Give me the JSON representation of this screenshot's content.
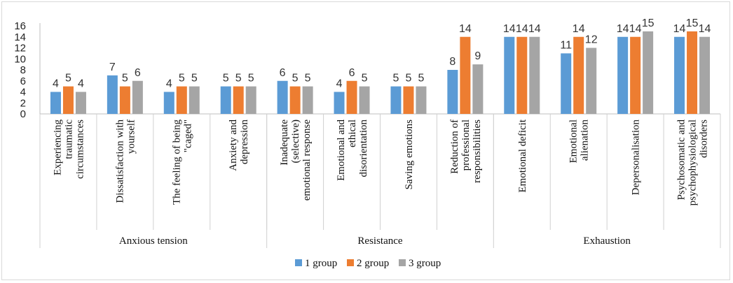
{
  "chart_data": {
    "type": "bar",
    "title": "",
    "xlabel": "",
    "ylabel": "",
    "ylim": [
      0,
      16
    ],
    "yticks": [
      0,
      2,
      4,
      6,
      8,
      10,
      12,
      14,
      16
    ],
    "grid": false,
    "legend_position": "bottom",
    "categories": [
      "Experiencing traumatic circumstances",
      "Dissatisfaction with yourself",
      "The feeling of being \"caged\"",
      "Anxiety and depression",
      "Inadequate (selective) emotional response",
      "Emotional and ethical disorientation",
      "Saving emotions",
      "Reduction of professional responsibilities",
      "Emotional deficit",
      "Emotional alienation",
      "Depersonalisation",
      "Psychosomatic and psychophysiological disorders"
    ],
    "category_lines": [
      [
        "Experiencing",
        "traumatic",
        "circumstances"
      ],
      [
        "Dissatisfaction with",
        "yourself"
      ],
      [
        "The feeling of being",
        "\"caged\""
      ],
      [
        "Anxiety and",
        "depression"
      ],
      [
        "Inadequate",
        "(selective)",
        "emotional response"
      ],
      [
        "Emotional and",
        "ethical",
        "disorientation"
      ],
      [
        "Saving emotions"
      ],
      [
        "Reduction of",
        "professional",
        "responsibilities"
      ],
      [
        "Emotional deficit"
      ],
      [
        "Emotional",
        "alienation"
      ],
      [
        "Depersonalisation"
      ],
      [
        "Psychosomatic and",
        "psychophysiological",
        "disorders"
      ]
    ],
    "groups": [
      {
        "name": "Anxious tension",
        "span": 4
      },
      {
        "name": "Resistance",
        "span": 4
      },
      {
        "name": "Exhaustion",
        "span": 4
      }
    ],
    "series": [
      {
        "name": "1 group",
        "color": "#5B9BD5",
        "values": [
          4,
          7,
          4,
          5,
          6,
          4,
          5,
          8,
          14,
          11,
          14,
          14
        ]
      },
      {
        "name": "2 group",
        "color": "#ED7D31",
        "values": [
          5,
          5,
          5,
          5,
          5,
          6,
          5,
          14,
          14,
          14,
          14,
          15
        ]
      },
      {
        "name": "3 group",
        "color": "#A5A5A5",
        "values": [
          4,
          6,
          5,
          5,
          5,
          5,
          5,
          9,
          14,
          12,
          15,
          14
        ]
      }
    ]
  }
}
